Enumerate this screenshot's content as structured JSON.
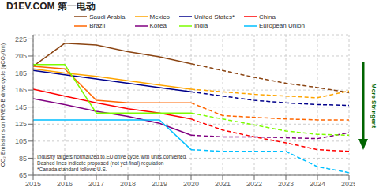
{
  "chart_data": {
    "type": "line",
    "title": "D1EV.COM 第一电动",
    "y_label": "CO₂ Emissions on MVEG-B drive cycle (gCO₂/km)",
    "x": [
      2015,
      2016,
      2017,
      2018,
      2019,
      2020,
      2021,
      2022,
      2023,
      2024,
      2025
    ],
    "xlim": [
      2015,
      2025
    ],
    "xticks": [
      2015,
      2016,
      2017,
      2018,
      2019,
      2020,
      2021,
      2022,
      2023,
      2024,
      2025
    ],
    "ylim": [
      65,
      230
    ],
    "yticks": [
      65,
      85,
      105,
      125,
      145,
      165,
      185,
      205,
      225
    ],
    "grid": true,
    "legend": "top",
    "series": [
      {
        "name": "Saudi Arabia",
        "color": "#8B4513",
        "segments": [
          {
            "line_style": "solid",
            "values": [
              193,
              220,
              218,
              210,
              204,
              196,
              null,
              null,
              null,
              null,
              null
            ]
          },
          {
            "line_style": "dashed",
            "values": [
              null,
              null,
              null,
              null,
              null,
              196,
              188,
              180,
              173,
              168,
              162
            ]
          }
        ]
      },
      {
        "name": "Mexico",
        "color": "#FFA500",
        "segments": [
          {
            "line_style": "solid",
            "values": [
              190,
              185,
              181,
              176,
              171,
              166,
              null,
              null,
              null,
              null,
              null
            ]
          },
          {
            "line_style": "dashed",
            "values": [
              null,
              null,
              null,
              null,
              null,
              166,
              163,
              160,
              158,
              156,
              164
            ]
          }
        ]
      },
      {
        "name": "United States*",
        "color": "#00008B",
        "segments": [
          {
            "line_style": "solid",
            "values": [
              188,
              183,
              178,
              173,
              168,
              163,
              null,
              null,
              null,
              null,
              null
            ]
          },
          {
            "line_style": "dashed",
            "values": [
              null,
              null,
              null,
              null,
              null,
              163,
              158,
              153,
              150,
              148,
              147
            ]
          }
        ]
      },
      {
        "name": "China",
        "color": "#FF0000",
        "segments": [
          {
            "line_style": "solid",
            "values": [
              166,
              158,
              150,
              143,
              138,
              131,
              null,
              null,
              null,
              null,
              null
            ]
          },
          {
            "line_style": "dashed",
            "values": [
              null,
              null,
              null,
              null,
              null,
              131,
              118,
              110,
              103,
              95,
              93
            ]
          }
        ]
      },
      {
        "name": "Brazil",
        "color": "#FF6600",
        "segments": [
          {
            "line_style": "solid",
            "values": [
              193,
              190,
              153,
              150,
              150,
              150,
              null,
              null,
              null,
              null,
              null
            ]
          },
          {
            "line_style": "dashed",
            "values": [
              null,
              null,
              null,
              null,
              null,
              150,
              135,
              133,
              131,
              130,
              130
            ]
          }
        ]
      },
      {
        "name": "Korea",
        "color": "#800080",
        "segments": [
          {
            "line_style": "solid",
            "values": [
              155,
              148,
              140,
              134,
              126,
              112,
              null,
              null,
              null,
              null,
              null
            ]
          },
          {
            "line_style": "dashed",
            "values": [
              null,
              null,
              null,
              null,
              null,
              112,
              110,
              110,
              109,
              108,
              115
            ]
          }
        ]
      },
      {
        "name": "India",
        "color": "#7CFC00",
        "segments": [
          {
            "line_style": "solid",
            "values": [
              195,
              195,
              138,
              138,
              138,
              138,
              null,
              null,
              null,
              null,
              null
            ]
          },
          {
            "line_style": "dashed",
            "values": [
              null,
              null,
              null,
              null,
              null,
              138,
              131,
              124,
              117,
              113,
              112
            ]
          }
        ]
      },
      {
        "name": "European Union",
        "color": "#00BFFF",
        "segments": [
          {
            "line_style": "solid",
            "values": [
              130,
              130,
              130,
              130,
              130,
              95,
              null,
              null,
              null,
              null,
              null
            ]
          },
          {
            "line_style": "dashed",
            "values": [
              null,
              null,
              null,
              null,
              null,
              95,
              93,
              93,
              93,
              75,
              68
            ]
          }
        ]
      }
    ],
    "notes": [
      "Industry targets normalized to EU drive cycle with units converted",
      "Dashed lines indicate proposed (not yet final) regulation",
      "*Canada standard follows U.S."
    ],
    "arrow_label": "More Stringent"
  }
}
